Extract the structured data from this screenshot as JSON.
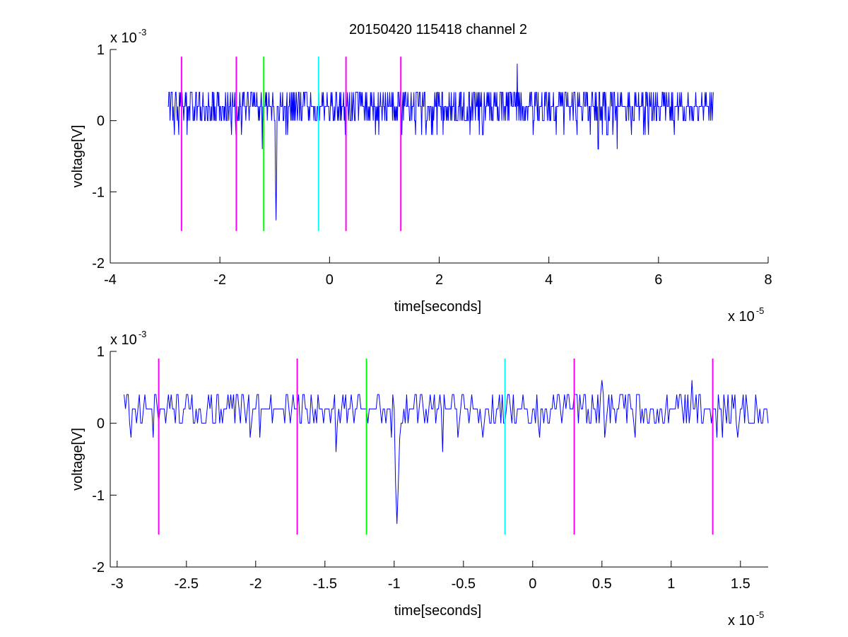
{
  "figure": {
    "background": "#ffffff",
    "title": "20150420 115418 channel 2"
  },
  "colors": {
    "signal": "#0000ff",
    "magenta": "#ff00ff",
    "green": "#00ff00",
    "cyan": "#00ffff",
    "axes": "#000000"
  },
  "chart_data": [
    {
      "type": "line",
      "title": "20150420 115418 channel 2",
      "xlabel": "time[seconds]",
      "ylabel": "voltage[V]",
      "x_multiplier": "x 10",
      "x_exponent": "-5",
      "y_multiplier": "x 10",
      "y_exponent": "-3",
      "xlim": [
        -4e-05,
        8e-05
      ],
      "ylim": [
        -0.002,
        0.001
      ],
      "xticks": [
        -4e-05,
        -2e-05,
        0,
        2e-05,
        4e-05,
        6e-05,
        8e-05
      ],
      "xtick_labels": [
        "-4",
        "-2",
        "0",
        "2",
        "4",
        "6",
        "8"
      ],
      "yticks": [
        -0.002,
        -0.001,
        0,
        0.001
      ],
      "ytick_labels": [
        "-2",
        "-1",
        "0",
        "1"
      ],
      "grid": false,
      "series": [
        {
          "color": "#0000ff",
          "x_start": -2.95e-05,
          "x_end": 7e-05,
          "sample_count": 994,
          "baseline": 0.0002,
          "noise_levels": [
            0,
            0.0002,
            0.0004
          ],
          "events": [
            {
              "x": -9.8e-06,
              "y": -0.0014
            },
            {
              "x": -1.23e-05,
              "y": -0.0004
            },
            {
              "x": 3.42e-05,
              "y": 0.0008
            },
            {
              "x": 4.9e-05,
              "y": -0.0004
            },
            {
              "x": 5.25e-05,
              "y": -0.0004
            }
          ]
        }
      ],
      "markers": [
        {
          "x": -2.7e-05,
          "color": "#ff00ff",
          "y_range": [
            -0.00155,
            0.0009
          ]
        },
        {
          "x": -1.7e-05,
          "color": "#ff00ff",
          "y_range": [
            -0.00155,
            0.0009
          ]
        },
        {
          "x": -1.2e-05,
          "color": "#00ff00",
          "y_range": [
            -0.00155,
            0.0009
          ]
        },
        {
          "x": -2e-06,
          "color": "#00ffff",
          "y_range": [
            -0.00155,
            0.0009
          ]
        },
        {
          "x": 3e-06,
          "color": "#ff00ff",
          "y_range": [
            -0.00155,
            0.0009
          ]
        },
        {
          "x": 1.3e-05,
          "color": "#ff00ff",
          "y_range": [
            -0.00155,
            0.0009
          ]
        }
      ]
    },
    {
      "type": "line",
      "title": "",
      "xlabel": "time[seconds]",
      "ylabel": "voltage[V]",
      "x_multiplier": "x 10",
      "x_exponent": "-5",
      "y_multiplier": "x 10",
      "y_exponent": "-3",
      "xlim": [
        -3.05e-05,
        1.7e-05
      ],
      "ylim": [
        -0.002,
        0.001
      ],
      "xticks": [
        -3e-05,
        -2.5e-05,
        -2e-05,
        -1.5e-05,
        -1e-05,
        -5e-06,
        0,
        5e-06,
        1e-05,
        1.5e-05
      ],
      "xtick_labels": [
        "-3",
        "-2.5",
        "-2",
        "-1.5",
        "-1",
        "-0.5",
        "0",
        "0.5",
        "1",
        "1.5"
      ],
      "yticks": [
        -0.002,
        -0.001,
        0,
        0.001
      ],
      "ytick_labels": [
        "-2",
        "-1",
        "0",
        "1"
      ],
      "grid": false,
      "series": [
        {
          "color": "#0000ff",
          "x_start": -2.95e-05,
          "x_end": 1.7e-05,
          "sample_count": 466,
          "baseline": 0.0002,
          "noise_levels": [
            0,
            0.0002,
            0.0004
          ],
          "events": [
            {
              "x": -9.8e-06,
              "y": -0.0014
            },
            {
              "x": -1.42e-05,
              "y": -0.0004
            },
            {
              "x": -6.5e-06,
              "y": -0.0004
            },
            {
              "x": 5e-06,
              "y": 0.0006
            },
            {
              "x": 1.15e-05,
              "y": 0.0006
            },
            {
              "x": -2.9e-05,
              "y": -0.0002
            }
          ]
        }
      ],
      "markers": [
        {
          "x": -2.7e-05,
          "color": "#ff00ff",
          "y_range": [
            -0.00155,
            0.0009
          ]
        },
        {
          "x": -1.7e-05,
          "color": "#ff00ff",
          "y_range": [
            -0.00155,
            0.0009
          ]
        },
        {
          "x": -1.2e-05,
          "color": "#00ff00",
          "y_range": [
            -0.00155,
            0.0009
          ]
        },
        {
          "x": -2e-06,
          "color": "#00ffff",
          "y_range": [
            -0.00155,
            0.0009
          ]
        },
        {
          "x": 3e-06,
          "color": "#ff00ff",
          "y_range": [
            -0.00155,
            0.0009
          ]
        },
        {
          "x": 1.3e-05,
          "color": "#ff00ff",
          "y_range": [
            -0.00155,
            0.0009
          ]
        }
      ]
    }
  ]
}
